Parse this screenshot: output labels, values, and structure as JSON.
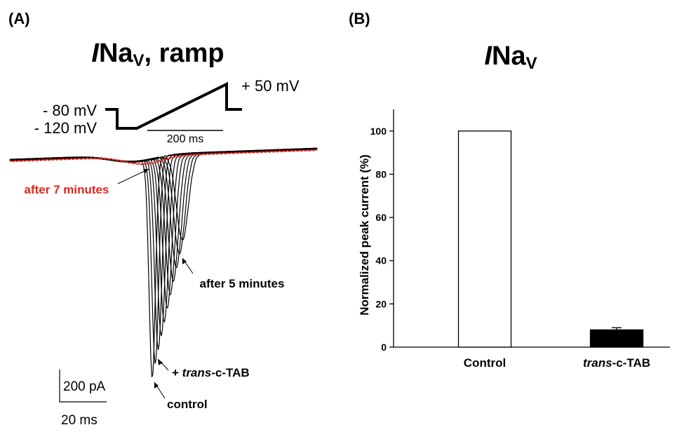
{
  "chart_data": [
    {
      "panel": "A",
      "panel_label": "(A)",
      "type": "line",
      "title_italic": "I",
      "title_main": "Na",
      "title_sub": "V",
      "title_rest": ", ramp",
      "protocol": {
        "holding_label": "- 80 mV",
        "start_label": "- 120 mV",
        "end_label": "+ 50 mV",
        "duration_label": "200 ms",
        "holding_mV": -80,
        "start_mV": -120,
        "end_mV": 50,
        "duration_ms": 200
      },
      "traces_black_count": 11,
      "trace_red_label": "after 7 minutes",
      "annotations": {
        "after5": "after 5 minutes",
        "trans_prefix": "+ ",
        "trans_italic": "trans",
        "trans_suffix": "-c-TAB",
        "control": "control"
      },
      "scalebar": {
        "y_label": "200 pA",
        "x_label": "20 ms",
        "y_pA": 200,
        "x_ms": 20
      },
      "colors": {
        "traces": "#000000",
        "after_7_minutes": "#e8231a"
      }
    },
    {
      "panel": "B",
      "panel_label": "(B)",
      "type": "bar",
      "title_italic": "I",
      "title_main": "Na",
      "title_sub": "V",
      "ylabel": "Normalized peak current (%)",
      "ylim": [
        0,
        110
      ],
      "yticks": [
        0,
        20,
        40,
        60,
        80,
        100
      ],
      "categories": [
        "Control",
        "trans-c-TAB"
      ],
      "category_parts": [
        {
          "italic": "",
          "plain": "Control"
        },
        {
          "italic": "trans",
          "plain": "-c-TAB"
        }
      ],
      "values": [
        100,
        8
      ],
      "errors": [
        0,
        1
      ],
      "bar_fill": [
        "#ffffff",
        "#000000"
      ]
    }
  ]
}
